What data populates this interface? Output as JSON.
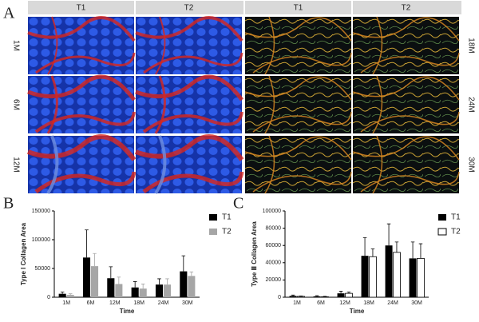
{
  "image_panel": {
    "label": "A",
    "columns": [
      "T1",
      "T2",
      "T1",
      "T2"
    ],
    "left_rows": [
      "1M",
      "6M",
      "12M"
    ],
    "right_rows": [
      "18M",
      "24M",
      "30M"
    ]
  },
  "chart_data": [
    {
      "type": "bar",
      "panel_label": "B",
      "y_label": "Type I Collagen Area",
      "x_label": "Time",
      "categories": [
        "1M",
        "6M",
        "12M",
        "18M",
        "24M",
        "30M"
      ],
      "series": [
        {
          "name": "T1",
          "color": "#000000",
          "values": [
            6000,
            69000,
            33000,
            17000,
            22000,
            45000
          ],
          "errors": [
            3000,
            48000,
            20000,
            10000,
            10000,
            27000
          ]
        },
        {
          "name": "T2",
          "color": "#a6a6a6",
          "values": [
            4000,
            54000,
            23000,
            15000,
            22000,
            37000
          ],
          "errors": [
            2000,
            22000,
            12000,
            8000,
            10000,
            7000
          ]
        }
      ],
      "ylim": [
        0,
        150000
      ],
      "yticks": [
        0,
        50000,
        100000,
        150000
      ],
      "legend": "right"
    },
    {
      "type": "bar",
      "panel_label": "C",
      "y_label": "Type Ⅲ Collagen Area",
      "x_label": "Time",
      "categories": [
        "1M",
        "6M",
        "12M",
        "18M",
        "24M",
        "30M"
      ],
      "series": [
        {
          "name": "T1",
          "color": "#000000",
          "values": [
            1500,
            1000,
            4500,
            48000,
            60000,
            45000
          ],
          "errors": [
            1000,
            800,
            2500,
            21000,
            25000,
            19000
          ]
        },
        {
          "name": "T2",
          "color": "#ffffff",
          "edgecolor": "#000000",
          "values": [
            1000,
            500,
            4500,
            47000,
            52000,
            45000
          ],
          "errors": [
            500,
            500,
            1500,
            9000,
            12000,
            17000
          ]
        }
      ],
      "ylim": [
        0,
        100000
      ],
      "yticks": [
        0,
        20000,
        40000,
        60000,
        80000,
        100000
      ],
      "legend": "right"
    }
  ]
}
